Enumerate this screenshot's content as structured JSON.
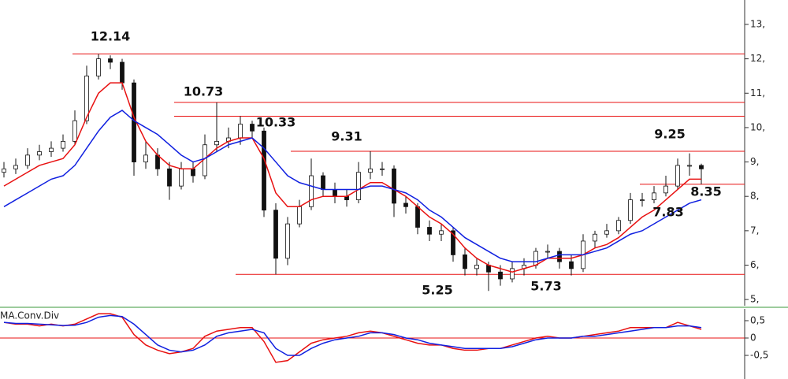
{
  "chart_data": [
    {
      "type": "candlestick",
      "open": [
        8.7,
        8.8,
        8.9,
        9.2,
        9.3,
        9.4,
        9.6,
        10.2,
        11.5,
        12.0,
        11.9,
        11.3,
        9.0,
        9.2,
        8.8,
        8.3,
        8.8,
        8.6,
        9.5,
        9.6,
        9.7,
        10.1,
        9.9,
        7.6,
        6.2,
        7.2,
        7.7,
        8.6,
        8.2,
        8.0,
        7.9,
        8.7,
        8.8,
        8.8,
        7.8,
        7.7,
        7.1,
        6.9,
        7.0,
        6.3,
        5.9,
        6.0,
        5.8,
        5.6,
        5.9,
        6.0,
        6.4,
        6.4,
        6.1,
        5.9,
        6.7,
        6.9,
        7.0,
        7.3,
        7.9,
        7.9,
        8.1,
        8.3,
        8.9,
        8.9
      ],
      "high": [
        9.0,
        9.1,
        9.4,
        9.5,
        9.6,
        9.8,
        10.5,
        11.8,
        12.14,
        12.1,
        12.0,
        11.4,
        9.6,
        9.4,
        9.0,
        9.0,
        9.0,
        9.8,
        10.73,
        10.0,
        10.33,
        10.2,
        10.0,
        7.8,
        7.4,
        7.9,
        9.1,
        8.7,
        8.4,
        8.2,
        9.0,
        9.31,
        9.0,
        8.9,
        8.0,
        7.8,
        7.3,
        7.2,
        7.1,
        6.5,
        6.2,
        6.1,
        6.0,
        6.1,
        6.2,
        6.5,
        6.6,
        6.5,
        6.3,
        6.9,
        7.0,
        7.2,
        7.4,
        8.1,
        8.1,
        8.3,
        8.6,
        9.1,
        9.25,
        8.95
      ],
      "low": [
        8.55,
        8.65,
        8.8,
        9.05,
        9.15,
        9.3,
        9.5,
        10.1,
        11.4,
        11.7,
        11.1,
        8.6,
        8.8,
        8.6,
        7.9,
        8.2,
        8.4,
        8.5,
        9.3,
        9.4,
        9.5,
        9.7,
        7.4,
        5.73,
        6.0,
        7.1,
        7.6,
        8.0,
        7.8,
        7.7,
        7.8,
        8.5,
        8.6,
        7.4,
        7.5,
        6.9,
        6.7,
        6.7,
        6.1,
        5.7,
        5.7,
        5.25,
        5.4,
        5.5,
        5.7,
        5.9,
        6.2,
        5.9,
        5.7,
        5.8,
        6.5,
        6.8,
        6.9,
        7.2,
        7.7,
        7.8,
        8.0,
        8.2,
        8.6,
        8.35
      ],
      "close": [
        8.8,
        8.9,
        9.2,
        9.3,
        9.4,
        9.6,
        10.2,
        11.5,
        12.0,
        11.9,
        11.3,
        9.0,
        9.2,
        8.8,
        8.3,
        8.8,
        8.6,
        9.5,
        9.6,
        9.7,
        10.1,
        9.9,
        7.6,
        6.2,
        7.2,
        7.7,
        8.6,
        8.2,
        8.0,
        7.9,
        8.7,
        8.8,
        8.8,
        7.8,
        7.7,
        7.1,
        6.9,
        7.0,
        6.3,
        5.9,
        6.0,
        5.8,
        5.6,
        5.9,
        6.0,
        6.4,
        6.4,
        6.1,
        5.9,
        6.7,
        6.9,
        7.0,
        7.3,
        7.9,
        7.9,
        8.1,
        8.3,
        8.9,
        8.9,
        8.8
      ],
      "series": [
        {
          "color": "#e81010",
          "values": [
            8.3,
            8.5,
            8.7,
            8.9,
            9.0,
            9.1,
            9.5,
            10.3,
            11.0,
            11.3,
            11.3,
            10.3,
            9.6,
            9.2,
            8.9,
            8.8,
            8.8,
            9.1,
            9.4,
            9.6,
            9.7,
            9.7,
            9.1,
            8.1,
            7.7,
            7.7,
            7.9,
            8.0,
            8.0,
            8.0,
            8.2,
            8.4,
            8.4,
            8.2,
            8.0,
            7.7,
            7.4,
            7.2,
            6.9,
            6.5,
            6.2,
            6.0,
            5.9,
            5.8,
            5.9,
            6.0,
            6.2,
            6.2,
            6.2,
            6.3,
            6.5,
            6.6,
            6.8,
            7.1,
            7.4,
            7.6,
            7.9,
            8.2,
            8.5,
            8.5
          ]
        },
        {
          "color": "#1020e0",
          "values": [
            7.7,
            7.9,
            8.1,
            8.3,
            8.5,
            8.6,
            8.9,
            9.4,
            9.9,
            10.3,
            10.5,
            10.2,
            10.0,
            9.8,
            9.5,
            9.2,
            9.0,
            9.1,
            9.3,
            9.5,
            9.6,
            9.7,
            9.4,
            9.0,
            8.6,
            8.4,
            8.3,
            8.2,
            8.2,
            8.2,
            8.2,
            8.3,
            8.3,
            8.2,
            8.1,
            7.9,
            7.6,
            7.4,
            7.1,
            6.8,
            6.6,
            6.4,
            6.2,
            6.1,
            6.1,
            6.1,
            6.2,
            6.3,
            6.3,
            6.3,
            6.4,
            6.5,
            6.7,
            6.9,
            7.0,
            7.2,
            7.4,
            7.6,
            7.8,
            7.9
          ]
        }
      ],
      "levels": [
        12.14,
        10.73,
        10.33,
        9.31,
        8.35,
        5.73
      ],
      "level_color": "#e81010",
      "annotations": [
        "12.14",
        "10.73",
        "10.33",
        "9.31",
        "9.25",
        "8.35",
        "7.83",
        "5.25",
        "5.73"
      ],
      "ylim": [
        4.82,
        13.71
      ],
      "yticks": [
        {
          "value": 13,
          "label": "13,"
        },
        {
          "value": 12,
          "label": "12,"
        },
        {
          "value": 11,
          "label": "11,"
        },
        {
          "value": 10,
          "label": "10,"
        },
        {
          "value": 9,
          "label": "9,"
        },
        {
          "value": 8,
          "label": "8,"
        },
        {
          "value": 7,
          "label": "7,"
        },
        {
          "value": 6,
          "label": "6,"
        },
        {
          "value": 5,
          "label": "5,"
        }
      ]
    },
    {
      "type": "line",
      "title": "MA.Conv.Div",
      "series": [
        {
          "color": "#e81010",
          "values": [
            0.45,
            0.4,
            0.4,
            0.35,
            0.4,
            0.35,
            0.4,
            0.55,
            0.7,
            0.7,
            0.6,
            0.1,
            -0.2,
            -0.35,
            -0.45,
            -0.4,
            -0.3,
            0.05,
            0.2,
            0.25,
            0.3,
            0.3,
            -0.1,
            -0.7,
            -0.65,
            -0.4,
            -0.15,
            -0.05,
            0,
            0.05,
            0.15,
            0.2,
            0.15,
            0.05,
            -0.05,
            -0.15,
            -0.2,
            -0.2,
            -0.3,
            -0.35,
            -0.35,
            -0.3,
            -0.3,
            -0.2,
            -0.1,
            0,
            0.05,
            0,
            0,
            0.05,
            0.1,
            0.15,
            0.2,
            0.3,
            0.3,
            0.3,
            0.3,
            0.45,
            0.35,
            0.25
          ]
        },
        {
          "color": "#1020e0",
          "values": [
            0.45,
            0.42,
            0.42,
            0.4,
            0.38,
            0.36,
            0.37,
            0.45,
            0.6,
            0.65,
            0.62,
            0.4,
            0.1,
            -0.2,
            -0.35,
            -0.4,
            -0.35,
            -0.2,
            0.05,
            0.15,
            0.2,
            0.25,
            0.15,
            -0.3,
            -0.5,
            -0.5,
            -0.3,
            -0.15,
            -0.05,
            0,
            0.05,
            0.15,
            0.15,
            0.1,
            0,
            -0.05,
            -0.15,
            -0.2,
            -0.25,
            -0.3,
            -0.3,
            -0.3,
            -0.3,
            -0.25,
            -0.15,
            -0.05,
            0,
            0,
            0,
            0.05,
            0.05,
            0.1,
            0.15,
            0.2,
            0.25,
            0.3,
            0.3,
            0.35,
            0.35,
            0.3
          ]
        }
      ],
      "zero_color": "#e81010",
      "ylim": [
        -1.18,
        0.84
      ],
      "yticks": [
        {
          "value": 0.5,
          "label": "0,5"
        },
        0,
        {
          "value": -0.5,
          "label": "-0,5"
        }
      ]
    }
  ]
}
